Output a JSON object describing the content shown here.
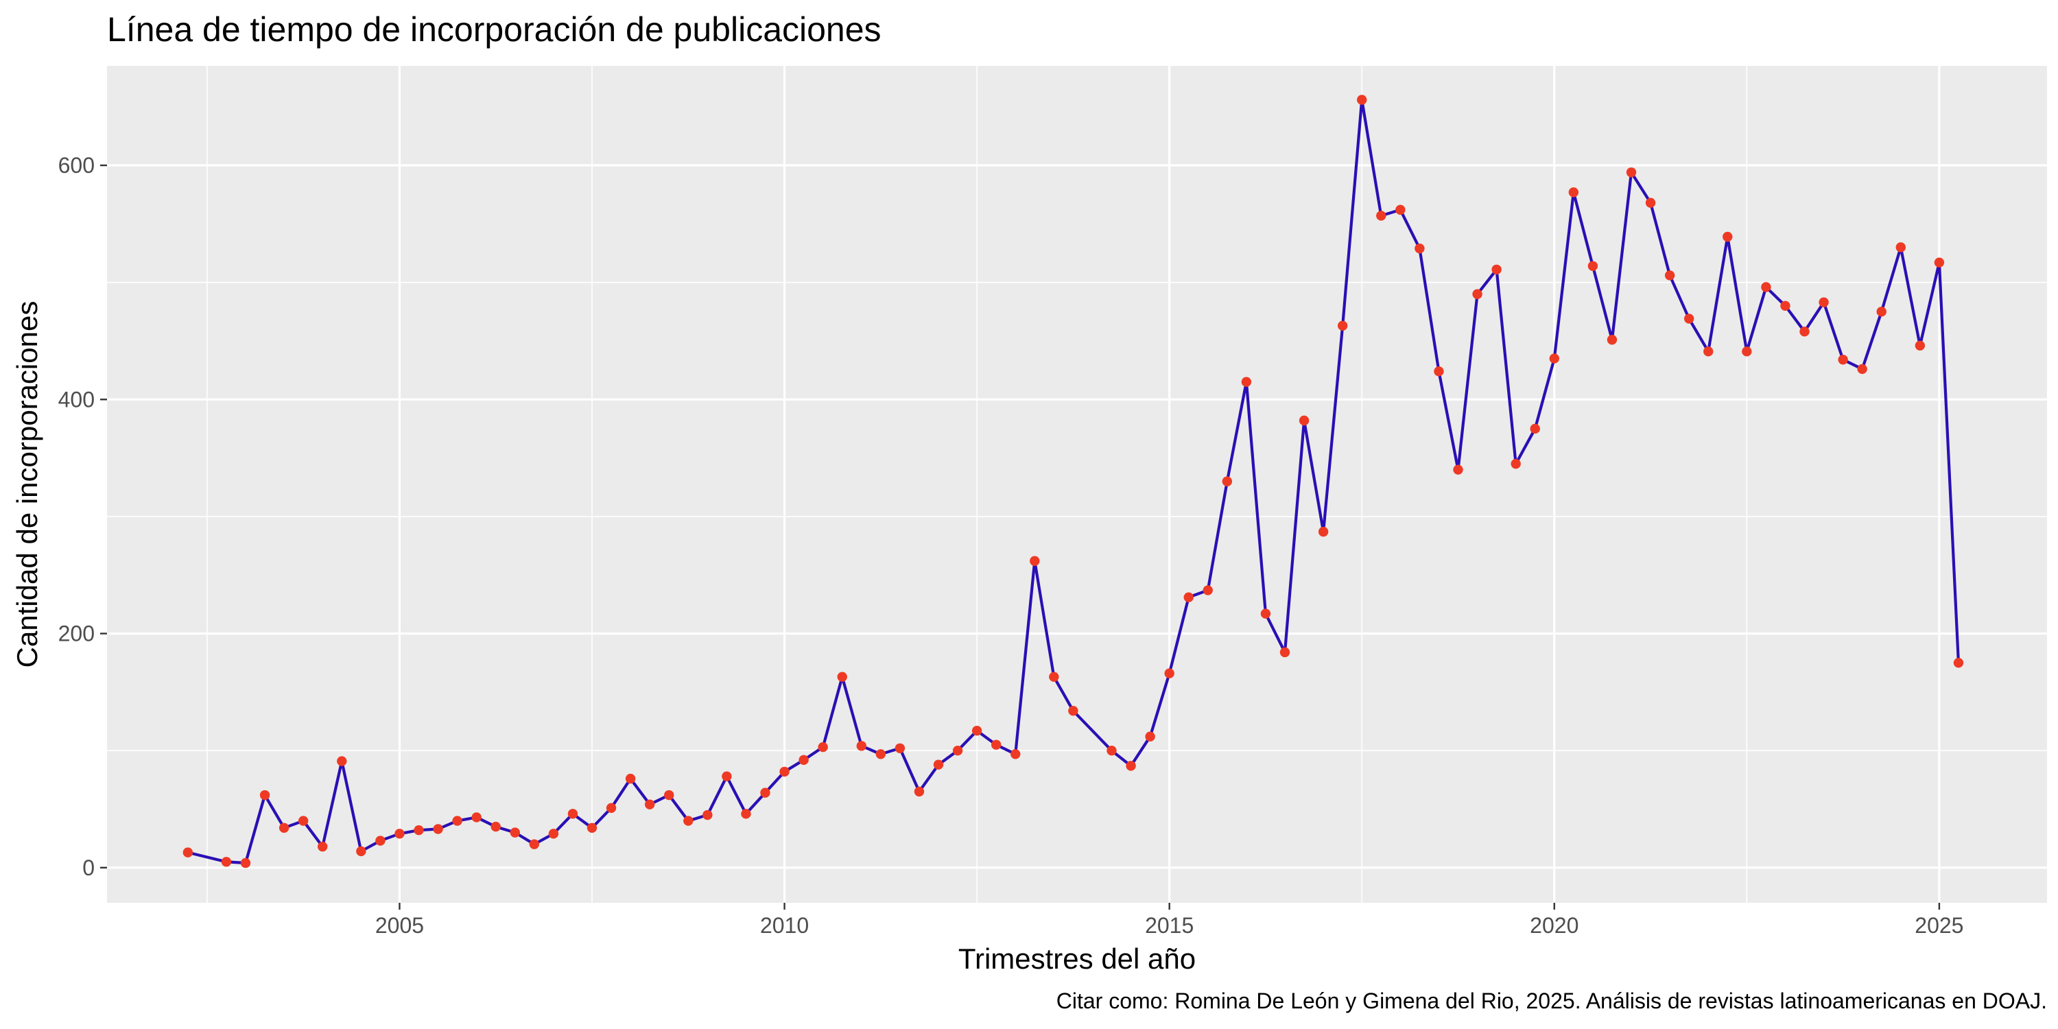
{
  "chart_data": {
    "type": "line",
    "title": "Línea de tiempo de incorporación de publicaciones",
    "xlabel": "Trimestres del año",
    "ylabel": "Cantidad de incorporaciones",
    "caption": "Citar como: Romina De León y Gimena del Rio, 2025. Análisis de revistas latinoamericanas en DOAJ.",
    "xlim": [
      2001.2,
      2026.4
    ],
    "ylim": [
      -30,
      685
    ],
    "x_ticks": [
      2005,
      2010,
      2015,
      2020,
      2025
    ],
    "x_tick_labels": [
      "2005",
      "2010",
      "2015",
      "2020",
      "2025"
    ],
    "y_ticks": [
      0,
      200,
      400,
      600
    ],
    "y_tick_labels": [
      "0",
      "200",
      "400",
      "600"
    ],
    "grid": true,
    "line_color": "#2a0fb4",
    "point_color": "#ee3a24",
    "panel_color": "#ebebeb",
    "series": [
      {
        "x": [
          2002.25,
          2002.75,
          2003.0,
          2003.25,
          2003.5,
          2003.75,
          2004.0,
          2004.25,
          2004.5,
          2004.75,
          2005.0,
          2005.25,
          2005.5,
          2005.75,
          2006.0,
          2006.25,
          2006.5,
          2006.75,
          2007.0,
          2007.25,
          2007.5,
          2007.75,
          2008.0,
          2008.25,
          2008.5,
          2008.75,
          2009.0,
          2009.25,
          2009.5,
          2009.75,
          2010.0,
          2010.25,
          2010.5,
          2010.75,
          2011.0,
          2011.25,
          2011.5,
          2011.75,
          2012.0,
          2012.25,
          2012.5,
          2012.75,
          2013.0,
          2013.25,
          2013.5,
          2013.75,
          2014.25,
          2014.5,
          2014.75,
          2015.0,
          2015.25,
          2015.5,
          2015.75,
          2016.0,
          2016.25,
          2016.5,
          2016.75,
          2017.0,
          2017.25,
          2017.5,
          2017.75,
          2018.0,
          2018.25,
          2018.5,
          2018.75,
          2019.0,
          2019.25,
          2019.5,
          2019.75,
          2020.0,
          2020.25,
          2020.5,
          2020.75,
          2021.0,
          2021.25,
          2021.5,
          2021.75,
          2022.0,
          2022.25,
          2022.5,
          2022.75,
          2023.0,
          2023.25,
          2023.5,
          2023.75,
          2024.0,
          2024.25,
          2024.5,
          2024.75,
          2025.0,
          2025.25
        ],
        "y": [
          13,
          5,
          4,
          62,
          34,
          40,
          18,
          91,
          14,
          23,
          29,
          32,
          33,
          40,
          43,
          35,
          30,
          20,
          29,
          46,
          34,
          51,
          76,
          54,
          62,
          40,
          45,
          78,
          46,
          64,
          82,
          92,
          103,
          163,
          104,
          97,
          102,
          65,
          88,
          100,
          117,
          105,
          97,
          262,
          163,
          134,
          100,
          87,
          112,
          166,
          231,
          237,
          330,
          415,
          217,
          184,
          382,
          287,
          463,
          656,
          557,
          562,
          529,
          424,
          340,
          490,
          511,
          345,
          375,
          435,
          577,
          514,
          451,
          594,
          568,
          506,
          469,
          441,
          539,
          441,
          496,
          480,
          458,
          483,
          434,
          426,
          475,
          530,
          446,
          517,
          175
        ]
      }
    ]
  }
}
